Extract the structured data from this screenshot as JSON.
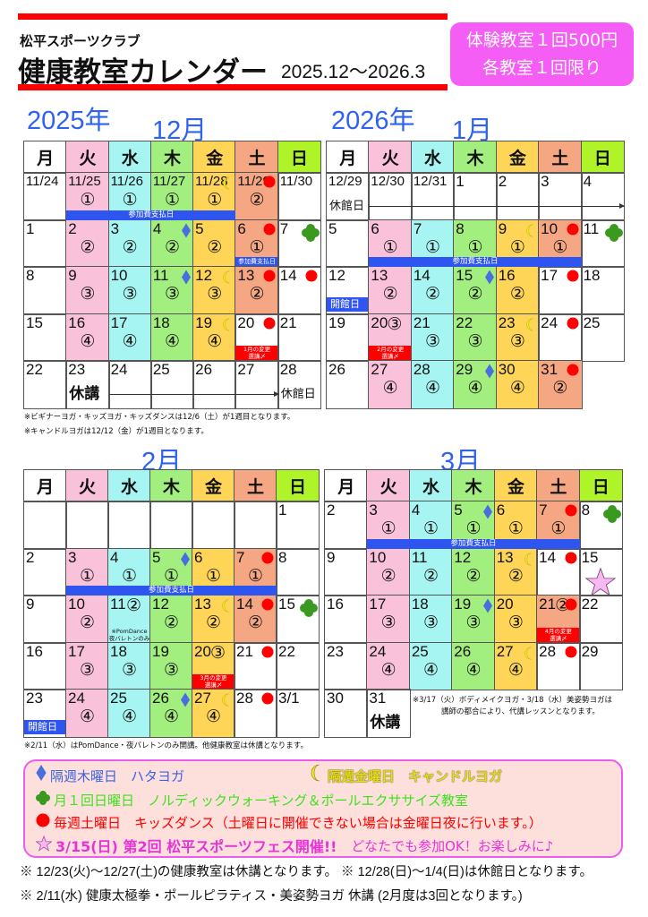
{
  "header": {
    "club": "松平スポーツクラブ",
    "title": "健康教室カレンダー",
    "range": "2025.12～2026.3",
    "promo_line1": "体験教室１回500円",
    "promo_line2": "各教室１回限り"
  },
  "weekdays": [
    "月",
    "火",
    "水",
    "木",
    "金",
    "土",
    "日"
  ],
  "colors": {
    "columns": [
      "#ffffff",
      "#f9c2da",
      "#a6f5f2",
      "#a2ee7e",
      "#ffd558",
      "#f5a682",
      "#ffffff"
    ],
    "header_sunday": "#aef428",
    "accent_blue": "#2f62f0",
    "pay_bar": "#2f55f0",
    "deadline_red": "#ff0000",
    "promo": "#f55ef5"
  },
  "months": [
    {
      "year": "2025年",
      "title": "12月",
      "weeks": [
        [
          {
            "d": "11/24"
          },
          {
            "d": "11/25",
            "s": "①"
          },
          {
            "d": "11/26",
            "s": "①"
          },
          {
            "d": "11/27",
            "s": "①"
          },
          {
            "d": "11/28",
            "s": "①",
            "m": [
              "moon"
            ]
          },
          {
            "d": "11/29",
            "s": "②",
            "m": [
              "dot"
            ]
          },
          {
            "d": "11/30"
          }
        ],
        [
          {
            "d": "1"
          },
          {
            "d": "2",
            "s": "②"
          },
          {
            "d": "3",
            "s": "②"
          },
          {
            "d": "4",
            "s": "②",
            "m": [
              "diamond"
            ]
          },
          {
            "d": "5",
            "s": "②"
          },
          {
            "d": "6",
            "s": "①",
            "m": [
              "dot"
            ],
            "bluetag": "参加費支払日"
          },
          {
            "d": "7",
            "m": [
              "clover"
            ]
          }
        ],
        [
          {
            "d": "8"
          },
          {
            "d": "9",
            "s": "③"
          },
          {
            "d": "10",
            "s": "③"
          },
          {
            "d": "11",
            "s": "③",
            "m": [
              "diamond"
            ]
          },
          {
            "d": "12",
            "s": "③",
            "m": [
              "moon"
            ]
          },
          {
            "d": "13",
            "s": "②",
            "m": [
              "dot"
            ]
          },
          {
            "d": "14",
            "m": [
              "dot"
            ]
          }
        ],
        [
          {
            "d": "15"
          },
          {
            "d": "16",
            "s": "④"
          },
          {
            "d": "17",
            "s": "④"
          },
          {
            "d": "18",
            "s": "④"
          },
          {
            "d": "19",
            "s": "④",
            "m": [
              "moon"
            ]
          },
          {
            "d": "20",
            "m": [
              "dot"
            ],
            "red": [
              "1月の変更",
              "選講〆"
            ]
          },
          {
            "d": "21"
          }
        ],
        [
          {
            "d": "22"
          },
          {
            "d": "23",
            "lbl": "休講"
          },
          {
            "d": "24"
          },
          {
            "d": "25"
          },
          {
            "d": "26"
          },
          {
            "d": "27"
          },
          {
            "d": "28",
            "lbl_sm": "休館日"
          }
        ]
      ],
      "bars": [
        {
          "from": "11/25",
          "to": "11/28",
          "label": "参加費支払日"
        }
      ],
      "arrows": [
        {
          "from": "24",
          "to": "27"
        }
      ],
      "notes": [
        "※ビギナーヨガ・キッズヨガ・キッズダンスは12/6（土）が1週目となります。",
        "※キャンドルヨガは12/12（金）が1週目となります。"
      ]
    },
    {
      "year": "2026年",
      "title": "1月",
      "weeks": [
        [
          {
            "d": "12/29",
            "lbl_sm": "休館日"
          },
          {
            "d": "12/30"
          },
          {
            "d": "12/31"
          },
          {
            "d": "1"
          },
          {
            "d": "2"
          },
          {
            "d": "3"
          },
          {
            "d": "4"
          }
        ],
        [
          {
            "d": "5"
          },
          {
            "d": "6",
            "s": "①"
          },
          {
            "d": "7",
            "s": "①"
          },
          {
            "d": "8",
            "s": "①"
          },
          {
            "d": "9",
            "s": "①",
            "m": [
              "moon"
            ]
          },
          {
            "d": "10",
            "s": "①",
            "m": [
              "dot"
            ]
          },
          {
            "d": "11",
            "m": [
              "clover"
            ]
          }
        ],
        [
          {
            "d": "12",
            "kaikan": "開館日"
          },
          {
            "d": "13",
            "s": "②"
          },
          {
            "d": "14",
            "s": "②"
          },
          {
            "d": "15",
            "s": "②",
            "m": [
              "diamond"
            ]
          },
          {
            "d": "16",
            "s": "②"
          },
          {
            "d": "17",
            "m": [
              "dot"
            ]
          },
          {
            "d": "18"
          }
        ],
        [
          {
            "d": "19"
          },
          {
            "d": "20",
            "s": "③",
            "red": [
              "2月の変更",
              "選講〆"
            ]
          },
          {
            "d": "21",
            "s": "③"
          },
          {
            "d": "22",
            "s": "③"
          },
          {
            "d": "23",
            "s": "③",
            "m": [
              "moon"
            ]
          },
          {
            "d": "24",
            "m": [
              "dot"
            ]
          },
          {
            "d": "25"
          }
        ],
        [
          {
            "d": "26"
          },
          {
            "d": "27",
            "s": "④"
          },
          {
            "d": "28",
            "s": "④"
          },
          {
            "d": "29",
            "s": "④",
            "m": [
              "diamond"
            ]
          },
          {
            "d": "30",
            "s": "④"
          },
          {
            "d": "31",
            "s": "②",
            "m": [
              "dot"
            ]
          },
          null
        ]
      ],
      "bars": [
        {
          "from": "6",
          "to": "10",
          "label": "参加費支払日"
        }
      ],
      "arrows": [
        {
          "from": "12/30",
          "to": "4"
        }
      ],
      "notes": []
    },
    {
      "year": "",
      "title": "2月",
      "weeks": [
        [
          {
            "d": ""
          },
          {
            "d": ""
          },
          {
            "d": ""
          },
          {
            "d": ""
          },
          {
            "d": ""
          },
          {
            "d": ""
          },
          {
            "d": "1"
          }
        ],
        [
          {
            "d": "2"
          },
          {
            "d": "3",
            "s": "①"
          },
          {
            "d": "4",
            "s": "①"
          },
          {
            "d": "5",
            "s": "①",
            "m": [
              "diamond"
            ]
          },
          {
            "d": "6",
            "s": "①"
          },
          {
            "d": "7",
            "s": "①",
            "m": [
              "dot"
            ]
          },
          {
            "d": "8"
          }
        ],
        [
          {
            "d": "9"
          },
          {
            "d": "10",
            "s": "②"
          },
          {
            "d": "11",
            "s": "②",
            "note": [
              "※PomDance",
              "夜バレトンのみ"
            ]
          },
          {
            "d": "12",
            "s": "②"
          },
          {
            "d": "13",
            "s": "②",
            "m": [
              "moon"
            ]
          },
          {
            "d": "14",
            "s": "②",
            "m": [
              "dot"
            ]
          },
          {
            "d": "15",
            "m": [
              "clover"
            ]
          }
        ],
        [
          {
            "d": "16"
          },
          {
            "d": "17",
            "s": "③"
          },
          {
            "d": "18",
            "s": "③"
          },
          {
            "d": "19",
            "s": "③"
          },
          {
            "d": "20",
            "s": "③",
            "red": [
              "3月の変更",
              "選講〆"
            ]
          },
          {
            "d": "21",
            "m": [
              "dot"
            ]
          },
          {
            "d": "22"
          }
        ],
        [
          {
            "d": "23",
            "kaikan": "開館日"
          },
          {
            "d": "24",
            "s": "④"
          },
          {
            "d": "25",
            "s": "④"
          },
          {
            "d": "26",
            "s": "④",
            "m": [
              "diamond"
            ]
          },
          {
            "d": "27",
            "s": "④",
            "m": [
              "moon"
            ]
          },
          {
            "d": "28",
            "m": [
              "dot"
            ]
          },
          {
            "d": "3/1"
          }
        ]
      ],
      "bars": [
        {
          "from": "3",
          "to": "7",
          "label": "参加費支払日"
        }
      ],
      "arrows": [],
      "notes": [
        "※2/11（水）はPomDance・夜バレトンのみ開講。他健康教室は休講となります。"
      ]
    },
    {
      "year": "",
      "title": "3月",
      "weeks": [
        [
          {
            "d": "2"
          },
          {
            "d": "3",
            "s": "①"
          },
          {
            "d": "4",
            "s": "①"
          },
          {
            "d": "5",
            "s": "①",
            "m": [
              "diamond"
            ]
          },
          {
            "d": "6",
            "s": "①"
          },
          {
            "d": "7",
            "s": "①",
            "m": [
              "dot"
            ]
          },
          {
            "d": "8",
            "m": [
              "clover"
            ]
          }
        ],
        [
          {
            "d": "9"
          },
          {
            "d": "10",
            "s": "②"
          },
          {
            "d": "11",
            "s": "②"
          },
          {
            "d": "12",
            "s": "②"
          },
          {
            "d": "13",
            "s": "②",
            "m": [
              "moon"
            ]
          },
          {
            "d": "14",
            "m": [
              "dot"
            ]
          },
          {
            "d": "15",
            "m": [
              "star"
            ]
          }
        ],
        [
          {
            "d": "16"
          },
          {
            "d": "17",
            "s": "③"
          },
          {
            "d": "18",
            "s": "③"
          },
          {
            "d": "19",
            "s": "③",
            "m": [
              "diamond"
            ]
          },
          {
            "d": "20",
            "s": "③"
          },
          {
            "d": "21",
            "s": "②",
            "m": [
              "dot"
            ],
            "red": [
              "4月の変更",
              "選講〆"
            ]
          },
          {
            "d": "22"
          }
        ],
        [
          {
            "d": "23"
          },
          {
            "d": "24",
            "s": "④"
          },
          {
            "d": "25",
            "s": "④"
          },
          {
            "d": "26",
            "s": "④"
          },
          {
            "d": "27",
            "s": "④",
            "m": [
              "moon"
            ]
          },
          {
            "d": "28",
            "m": [
              "dot"
            ]
          },
          {
            "d": "29"
          }
        ],
        [
          {
            "d": "30"
          },
          {
            "d": "31",
            "lbl": "休講"
          },
          null,
          null,
          null,
          null,
          null
        ]
      ],
      "bars": [
        {
          "from": "3",
          "to": "7",
          "label": "参加費支払日"
        }
      ],
      "arrows": [],
      "inner_note": [
        "※3/17（火）ボディメイクヨガ・3/18（水）美姿勢ヨガは",
        "講師の都合により、代講レッスンとなります。"
      ],
      "notes": []
    }
  ],
  "legend": {
    "diamond": "隔週木曜日　ハタヨガ",
    "moon": "隔週金曜日　キャンドルヨガ",
    "clover": "月１回日曜日　ノルディックウォーキング＆ポールエクササイズ教室",
    "dot": "毎週土曜日　キッズダンス（土曜日に開催できない場合は金曜日夜に行います。）",
    "star_main": "3/15(日) 第2回 松平スポーツフェス開催!!",
    "star_sub": "どなたでも参加OK！お楽しみに♪"
  },
  "footnotes": [
    "※ 12/23(火)～12/27(土)の健康教室は休講となります。 ※ 12/28(日)～1/4(日)は休館日となります。",
    "※  2/11(水) 健康太極拳・ポールピラティス・美姿勢ヨガ 休講 (2月度は3回となります。)"
  ]
}
